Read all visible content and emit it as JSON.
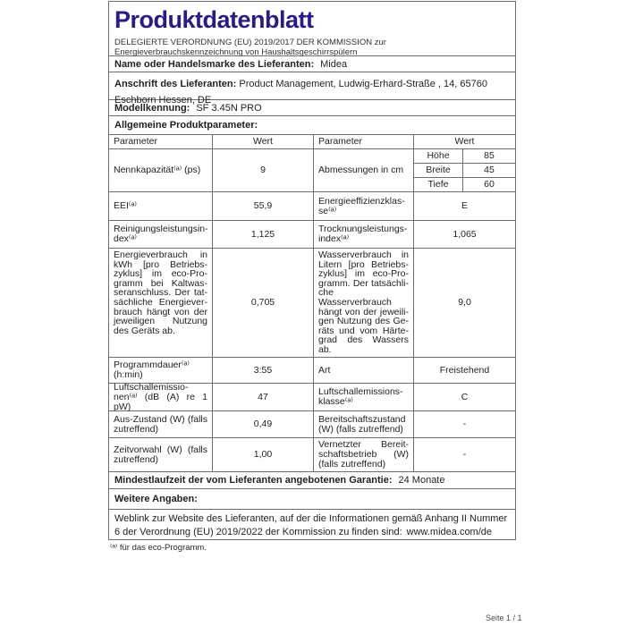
{
  "page": {
    "title": "Produktdatenblatt",
    "subtitle": "DELEGIERTE VERORDNUNG (EU) 2019/2017 DER KOMMISSION zur Energieverbrauchskennzeichnung von Haushaltsgeschirrspülern",
    "footer": "Seite 1 / 1",
    "accent_color": "#2e1a84",
    "border_color": "#6e6e6e"
  },
  "supplier": {
    "name_label": "Name oder Handelsmarke des Lieferanten:",
    "name_value": "Midea",
    "address_label": "Anschrift des Lieferanten:",
    "address_value": "Product Management, Ludwig-Erhard-Straße , 14, 65760 Eschborn Hes­sen, DE",
    "model_label": "Modellkennung:",
    "model_value": "SF 3.45N PRO",
    "general_params_label": "Allgemeine Produktparameter:"
  },
  "table": {
    "header": [
      "Parameter",
      "Wert",
      "Parameter",
      "Wert"
    ],
    "rows": [
      {
        "p1": "Nennkapazität⁽ᵃ⁾  (ps)",
        "v1": "9",
        "p2": "Abmessungen in cm",
        "dims": [
          {
            "k": "Höhe",
            "v": "85"
          },
          {
            "k": "Breite",
            "v": "45"
          },
          {
            "k": "Tiefe",
            "v": "60"
          }
        ]
      },
      {
        "p1": "EEI⁽ᵃ⁾",
        "v1": "55,9",
        "p2": "Energieeffizienzklas­se⁽ᵃ⁾",
        "v2": "E"
      },
      {
        "p1": "Reinigungsleistungsin­dex⁽ᵃ⁾",
        "v1": "1,125",
        "p2": "Trocknungsleistungs­index⁽ᵃ⁾",
        "v2": "1,065"
      },
      {
        "p1": "Energieverbrauch in kWh [pro Betriebs­zyklus] im eco-Pro­gramm bei Kaltwas­seranschluss. Der tat­sächliche Energiever­brauch hängt von der jeweiligen Nut­zung des Geräts ab.",
        "v1": "0,705",
        "p2": "Wasserverbrauch in Li­tern [pro Betriebs­zyklus] im eco-Pro­gramm. Der tatsächli­che Wasserverbrauch hängt von der jeweili­gen Nutzung des Ge­räts und vom Härte­grad des Wassers ab.",
        "v2": "9,0"
      },
      {
        "p1": "Programmdauer⁽ᵃ⁾ (h:min)",
        "v1": "3:55",
        "p2": "Art",
        "v2": "Freistehend"
      },
      {
        "p1": "Luftschallemissio­nen⁽ᵃ⁾ (dB (A) re 1 pW)",
        "v1": "47",
        "p2": "Luftschallemissions­klasse⁽ᵃ⁾",
        "v2": "C"
      },
      {
        "p1": "Aus-Zustand (W) (falls zutreffend)",
        "v1": "0,49",
        "p2": "Bereitschaftszustand (W) (falls zutreffend)",
        "v2": "-"
      },
      {
        "p1": "Zeitvorwahl (W) (falls zutreffend)",
        "v1": "1,00",
        "p2": "Vernetzter Bereit­schaftsbetrieb (W) (falls zutreffend)",
        "v2": "-"
      }
    ]
  },
  "warranty": {
    "label": "Mindestlaufzeit der vom Lieferanten angebotenen Garantie:",
    "value": "24 Monate"
  },
  "more_info": {
    "label": "Weitere Angaben:",
    "weblink_text": "Weblink zur Website des Lieferanten, auf der die Informationen gemäß Anhang II Nummer 6 der Verordnung (EU) 2019/2022 der Kommission zu finden sind:",
    "weblink_url": "www.midea.com/de"
  },
  "footnote": "⁽ᵃ⁾ für das eco-Programm."
}
